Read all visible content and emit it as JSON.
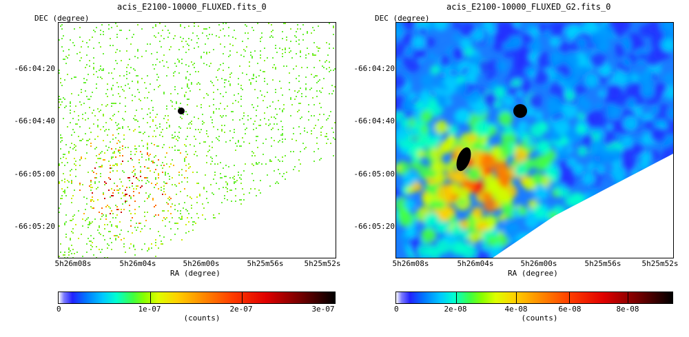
{
  "panels": [
    {
      "title": "acis_E2100-10000_FLUXED.fits_0",
      "y_axis_title": "DEC (degree)",
      "x_axis_title": "RA (degree)",
      "y_ticks": [
        "-66:04:20",
        "-66:04:40",
        "-66:05:00",
        "-66:05:20"
      ],
      "x_ticks": [
        "5h26m08s",
        "5h26m04s",
        "5h26m00s",
        "5h25m56s",
        "5h25m52s"
      ],
      "colorbar_ticks": [
        "0",
        "1e-07",
        "2e-07",
        "3e-07"
      ],
      "colorbar_title": "(counts)"
    },
    {
      "title": "acis_E2100-10000_FLUXED_G2.fits_0",
      "y_axis_title": "DEC (degree)",
      "x_axis_title": "RA (degree)",
      "y_ticks": [
        "-66:04:20",
        "-66:04:40",
        "-66:05:00",
        "-66:05:20"
      ],
      "x_ticks": [
        "5h26m08s",
        "5h26m04s",
        "5h26m00s",
        "5h25m56s",
        "5h25m52s"
      ],
      "colorbar_ticks": [
        "0",
        "2e-08",
        "4e-08",
        "6e-08",
        "8e-08"
      ],
      "colorbar_title": "(counts)"
    }
  ],
  "colormap": [
    "#ffffff",
    "#2222ff",
    "#00c8ff",
    "#40ff40",
    "#ddff00",
    "#ff8c00",
    "#e00000",
    "#000000"
  ]
}
